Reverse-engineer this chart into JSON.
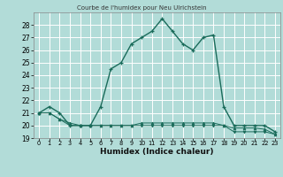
{
  "title": "Courbe de l'humidex pour Neu Ulrichstein",
  "xlabel": "Humidex (Indice chaleur)",
  "background_color": "#b2dcd8",
  "line_color": "#1a6b5a",
  "grid_color": "#ffffff",
  "xlim": [
    -0.5,
    23.5
  ],
  "ylim": [
    19,
    29
  ],
  "yticks": [
    19,
    20,
    21,
    22,
    23,
    24,
    25,
    26,
    27,
    28
  ],
  "xticks": [
    0,
    1,
    2,
    3,
    4,
    5,
    6,
    7,
    8,
    9,
    10,
    11,
    12,
    13,
    14,
    15,
    16,
    17,
    18,
    19,
    20,
    21,
    22,
    23
  ],
  "series1_x": [
    0,
    1,
    2,
    3,
    4,
    5,
    6,
    7,
    8,
    9,
    10,
    11,
    12,
    13,
    14,
    15,
    16,
    17,
    18,
    19,
    20,
    21,
    22,
    23
  ],
  "series1_y": [
    21.0,
    21.5,
    21.0,
    20.0,
    20.0,
    20.0,
    21.5,
    24.5,
    25.0,
    26.5,
    27.0,
    27.5,
    28.5,
    27.5,
    26.5,
    26.0,
    27.0,
    27.2,
    21.5,
    20.0,
    20.0,
    20.0,
    20.0,
    19.5
  ],
  "series2_x": [
    0,
    1,
    2,
    3,
    4,
    5,
    6,
    7,
    8,
    9,
    10,
    11,
    12,
    13,
    14,
    15,
    16,
    17,
    18,
    19,
    20,
    21,
    22,
    23
  ],
  "series2_y": [
    21.0,
    21.0,
    20.5,
    20.0,
    20.0,
    20.0,
    20.0,
    20.0,
    20.0,
    20.0,
    20.0,
    20.0,
    20.0,
    20.0,
    20.0,
    20.0,
    20.0,
    20.0,
    20.0,
    19.5,
    19.5,
    19.5,
    19.5,
    19.3
  ],
  "series3_x": [
    0,
    1,
    2,
    3,
    4,
    5,
    6,
    7,
    8,
    9,
    10,
    11,
    12,
    13,
    14,
    15,
    16,
    17,
    18,
    19,
    20,
    21,
    22,
    23
  ],
  "series3_y": [
    21.0,
    21.0,
    20.5,
    20.2,
    20.0,
    20.0,
    20.0,
    20.0,
    20.0,
    20.0,
    20.2,
    20.2,
    20.2,
    20.2,
    20.2,
    20.2,
    20.2,
    20.2,
    20.0,
    19.8,
    19.8,
    19.8,
    19.7,
    19.3
  ]
}
